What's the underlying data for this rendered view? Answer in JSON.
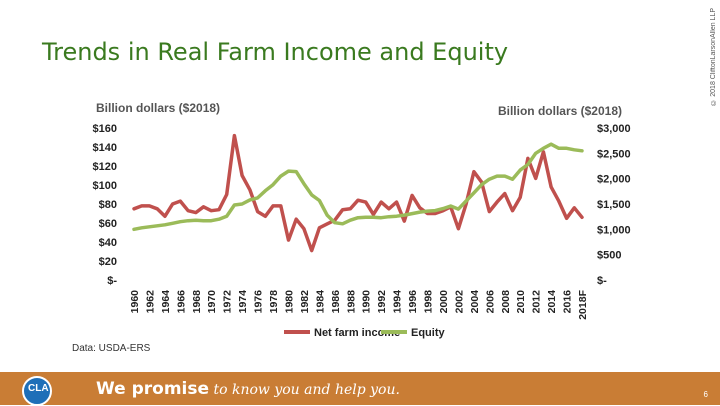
{
  "title": "Trends in Real Farm Income and Equity",
  "copyright": "© 2018 CliftonLarsonAllen LLP",
  "footer": {
    "logo_text": "CLA",
    "part1": "We promise",
    "part2": " to ",
    "part3": "know you",
    "part4": " and ",
    "part5": "help you.",
    "page_number": "6"
  },
  "colors": {
    "income": "#c0504d",
    "equity": "#9bbb59",
    "footer": "#c97d35",
    "title": "#3a7a1f"
  },
  "chart_data": {
    "type": "line",
    "left_axis_title": "Billion dollars ($2018)",
    "right_axis_title": "Billion dollars ($2018)",
    "left_ticks": [
      "$160",
      "$140",
      "$120",
      "$100",
      "$80",
      "$60",
      "$40",
      "$20",
      "$-"
    ],
    "right_ticks": [
      "$3,000",
      "$2,500",
      "$2,000",
      "$1,500",
      "$1,000",
      "$500",
      "$-"
    ],
    "ylim_left": [
      0,
      160
    ],
    "ylim_right": [
      0,
      3000
    ],
    "x_tick_labels": [
      "1960",
      "1962",
      "1964",
      "1966",
      "1968",
      "1970",
      "1972",
      "1974",
      "1976",
      "1978",
      "1980",
      "1982",
      "1984",
      "1986",
      "1988",
      "1990",
      "1992",
      "1994",
      "1996",
      "1998",
      "2000",
      "2002",
      "2004",
      "2006",
      "2008",
      "2010",
      "2012",
      "2014",
      "2016",
      "2018F"
    ],
    "x": [
      "1960",
      "1961",
      "1962",
      "1963",
      "1964",
      "1965",
      "1966",
      "1967",
      "1968",
      "1969",
      "1970",
      "1971",
      "1972",
      "1973",
      "1974",
      "1975",
      "1976",
      "1977",
      "1978",
      "1979",
      "1980",
      "1981",
      "1982",
      "1983",
      "1984",
      "1985",
      "1986",
      "1987",
      "1988",
      "1989",
      "1990",
      "1991",
      "1992",
      "1993",
      "1994",
      "1995",
      "1996",
      "1997",
      "1998",
      "1999",
      "2000",
      "2001",
      "2002",
      "2003",
      "2004",
      "2005",
      "2006",
      "2007",
      "2008",
      "2009",
      "2010",
      "2011",
      "2012",
      "2013",
      "2014",
      "2015",
      "2016",
      "2017",
      "2018F"
    ],
    "series": [
      {
        "name": "Net farm income",
        "axis": "left",
        "values": [
          75,
          78,
          78,
          75,
          67,
          80,
          83,
          73,
          71,
          77,
          73,
          74,
          90,
          152,
          110,
          95,
          72,
          67,
          78,
          78,
          42,
          64,
          54,
          31,
          55,
          59,
          63,
          74,
          75,
          84,
          82,
          69,
          82,
          75,
          82,
          62,
          89,
          76,
          70,
          70,
          73,
          77,
          54,
          80,
          114,
          103,
          72,
          82,
          91,
          73,
          87,
          128,
          107,
          135,
          98,
          83,
          65,
          76,
          66
        ]
      },
      {
        "name": "Equity",
        "axis": "right",
        "values": [
          1000,
          1030,
          1050,
          1070,
          1090,
          1120,
          1150,
          1170,
          1180,
          1170,
          1170,
          1200,
          1260,
          1480,
          1500,
          1580,
          1620,
          1760,
          1880,
          2050,
          2150,
          2140,
          1900,
          1680,
          1570,
          1280,
          1130,
          1110,
          1180,
          1230,
          1240,
          1240,
          1230,
          1250,
          1260,
          1280,
          1310,
          1340,
          1360,
          1370,
          1410,
          1460,
          1400,
          1560,
          1720,
          1880,
          1990,
          2050,
          2050,
          1990,
          2170,
          2280,
          2500,
          2600,
          2680,
          2600,
          2600,
          2570,
          2550
        ]
      }
    ],
    "legend_position": "bottom",
    "grid": false,
    "source": "Data: USDA-ERS"
  }
}
